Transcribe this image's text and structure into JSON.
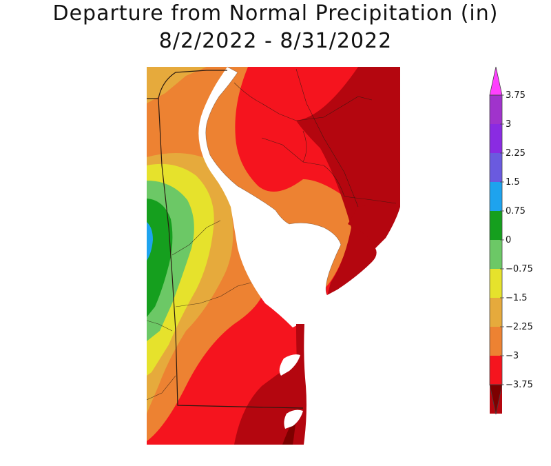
{
  "title": {
    "line1": "Departure from Normal Precipitation (in)",
    "line2": "8/2/2022 - 8/31/2022"
  },
  "legend": {
    "tick_labels": [
      "3.75",
      "3",
      "2.25",
      "1.5",
      "0.75",
      "0",
      "−0.75",
      "−1.5",
      "−2.25",
      "−3",
      "−3.75"
    ],
    "bins": [
      {
        "range": "> 3.75",
        "color": "#ff40ff"
      },
      {
        "range": "3 to 3.75",
        "color": "#a033cc"
      },
      {
        "range": "2.25 to 3",
        "color": "#8a2be2"
      },
      {
        "range": "1.5 to 2.25",
        "color": "#6a5adf"
      },
      {
        "range": "0.75 to 1.5",
        "color": "#1ea3ee"
      },
      {
        "range": "0 to 0.75",
        "color": "#159f1e"
      },
      {
        "range": "-0.75 to 0",
        "color": "#6cc866"
      },
      {
        "range": "-1.5 to -0.75",
        "color": "#e6e22c"
      },
      {
        "range": "-2.25 to -1.5",
        "color": "#e6aa3c"
      },
      {
        "range": "-3 to -2.25",
        "color": "#ed8232"
      },
      {
        "range": "-3.75 to -3",
        "color": "#f5141e"
      },
      {
        "range": "< -3.75",
        "color": "#b4060f"
      },
      {
        "range": "lowest",
        "color": "#7d0000"
      }
    ]
  },
  "map": {
    "region": "Delaware and surrounding area",
    "colors": {
      "water": "#ffffff",
      "border": "#2a1a10"
    }
  }
}
